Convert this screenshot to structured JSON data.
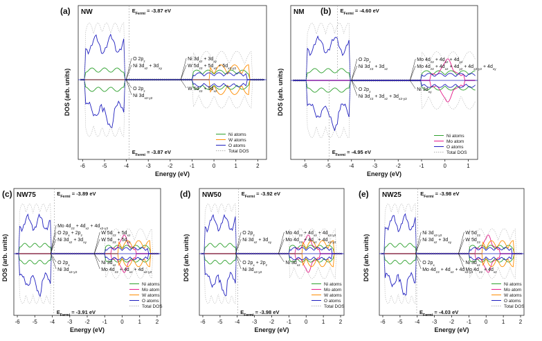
{
  "chart_data": [
    {
      "panel": "(a)",
      "title": "NW",
      "type": "line",
      "xlabel": "Energy (eV)",
      "ylabel": "DOS (arb. units)",
      "xlim": [
        -6.2,
        2.4
      ],
      "xticks": [
        "-6",
        "-5",
        "-4",
        "-3",
        "-2",
        "-1",
        "0",
        "1",
        "2"
      ],
      "fermi_top": "E_Fermi = -3.87 eV",
      "fermi_top_x": -3.87,
      "fermi_bottom": "E_Fermi = -3.87 eV",
      "fermi_bottom_x": -3.87,
      "series": [
        {
          "name": "Ni atoms",
          "color": "#2ca02c"
        },
        {
          "name": "W atoms",
          "color": "#ff8c00"
        },
        {
          "name": "O atoms",
          "color": "#1f1fbf"
        },
        {
          "name": "Total DOS",
          "color": "#b0b0b0"
        }
      ],
      "annotations": [
        "Ni 3d_xz + 3d_xy",
        "O 2p_z",
        "O 2p_z",
        "Ni 3d_x2-y2",
        "W 5d_z2 + 5d_xz + 5d_x2-y2",
        "W 5d_z2 + 5d_xz",
        "Ni 3d_xz + 3d_xy"
      ]
    },
    {
      "panel": "(b)",
      "title": "NM",
      "type": "line",
      "xlabel": "Energy (eV)",
      "ylabel": "DOS (arb. units)",
      "xlim": [
        -6.6,
        1.4
      ],
      "xticks": [
        "-6",
        "-5",
        "-4",
        "-3",
        "-2",
        "-1",
        "0",
        "1"
      ],
      "fermi_top": "E_Fermi = -4.60 eV",
      "fermi_top_x": -4.6,
      "fermi_bottom": "E_Fermi = -4.95 eV",
      "fermi_bottom_x": -4.95,
      "series": [
        {
          "name": "Ni atoms",
          "color": "#2ca02c"
        },
        {
          "name": "Mo atom",
          "color": "#e6198a"
        },
        {
          "name": "O atoms",
          "color": "#1f1fbf"
        },
        {
          "name": "Total DOS",
          "color": "#b0b0b0"
        }
      ],
      "annotations": [
        "Ni 3d_z2 + 3d_xz",
        "O 2p_z",
        "O 2p_z",
        "Ni 3d_z2 + 3d_xz + 3d_x2-y2",
        "Mo 4d_z2 + 4d_xz + 4d_yz + 4d_x2-y2 + 4d_xy",
        "Ni 3d_xy",
        "Mo 4d_z2 + 4d_xz + 4d_yz"
      ]
    },
    {
      "panel": "(c)",
      "title": "NW75",
      "type": "line",
      "xlabel": "Energy (eV)",
      "ylabel": "DOS (arb. units)",
      "xlim": [
        -6.2,
        2.2
      ],
      "xticks": [
        "-6",
        "-5",
        "-4",
        "-3",
        "-2",
        "-1",
        "0",
        "1",
        "2"
      ],
      "fermi_top": "E_Fermi = -3.89 eV",
      "fermi_top_x": -3.89,
      "fermi_bottom": "E_Fermi = -3.91 eV",
      "fermi_bottom_x": -3.91,
      "series": [
        {
          "name": "Ni atoms",
          "color": "#2ca02c"
        },
        {
          "name": "Mo atom",
          "color": "#e6198a"
        },
        {
          "name": "W atoms",
          "color": "#ff8c00"
        },
        {
          "name": "O atoms",
          "color": "#1f1fbf"
        },
        {
          "name": "Total DOS",
          "color": "#b0b0b0"
        }
      ],
      "annotations": [
        "Ni 3d_xz + 3d_xy",
        "O 2p_x",
        "O 2p_x + 2p_z",
        "Ni 3d_x2-y2",
        "Mo 4d_z2 + 4d_xz + 4d_x2-y2",
        "W 5d_z2 + 5d_xz",
        "Ni 3d_xz",
        "W 5d_z2 + 5d_xz",
        "Mo 4d_z2 + 4d_xz + 4d_x2-y2"
      ]
    },
    {
      "panel": "(d)",
      "title": "NW50",
      "type": "line",
      "xlabel": "Energy (eV)",
      "ylabel": "DOS (arb. units)",
      "xlim": [
        -6.2,
        2.2
      ],
      "xticks": [
        "-6",
        "-5",
        "-4",
        "-3",
        "-2",
        "-1",
        "0",
        "1",
        "2"
      ],
      "fermi_top": "E_Fermi = -3.92 eV",
      "fermi_top_x": -3.92,
      "fermi_bottom": "E_Fermi = -3.98 eV",
      "fermi_bottom_x": -3.98,
      "series": [
        {
          "name": "Ni atoms",
          "color": "#2ca02c"
        },
        {
          "name": "Mo atom",
          "color": "#e6198a"
        },
        {
          "name": "W atoms",
          "color": "#ff8c00"
        },
        {
          "name": "O atoms",
          "color": "#1f1fbf"
        },
        {
          "name": "Total DOS",
          "color": "#b0b0b0"
        }
      ],
      "annotations": [
        "Ni 3d_xz + 3d_xy",
        "O 2p_x + 2p_z",
        "O 2p_z",
        "Ni 3d_x2-y2",
        "Mo 4d_z2 + 4d_xz + 4d_x2-y2",
        "Ni 3d_xz",
        "Mo 4d_z2 + 4d_xz + 4d_x2-y2"
      ]
    },
    {
      "panel": "(e)",
      "title": "NW25",
      "type": "line",
      "xlabel": "Energy (eV)",
      "ylabel": "DOS (arb. units)",
      "xlim": [
        -6.2,
        2.2
      ],
      "xticks": [
        "-6",
        "-5",
        "-4",
        "-3",
        "-2",
        "-1",
        "0",
        "1",
        "2"
      ],
      "fermi_top": "E_Fermi = -3.98 eV",
      "fermi_top_x": -3.98,
      "fermi_bottom": "E_Fermi = -4.03 eV",
      "fermi_bottom_x": -4.03,
      "series": [
        {
          "name": "Ni atoms",
          "color": "#2ca02c"
        },
        {
          "name": "Mo atom",
          "color": "#e6198a"
        },
        {
          "name": "W atoms",
          "color": "#ff8c00"
        },
        {
          "name": "O atoms",
          "color": "#1f1fbf"
        },
        {
          "name": "Total DOS",
          "color": "#b0b0b0"
        }
      ],
      "annotations": [
        "Ni 3d_xz + 3d_xy",
        "O 2p_x",
        "Ni 3d_x2-y2",
        "Mo 4d_z2 + 4d_xz + 4d_x2-y2",
        "W 5d_z2",
        "Ni 3d_xz",
        "W 5d_z2",
        "Mo 4d_z2 + 4d_xz"
      ]
    }
  ]
}
